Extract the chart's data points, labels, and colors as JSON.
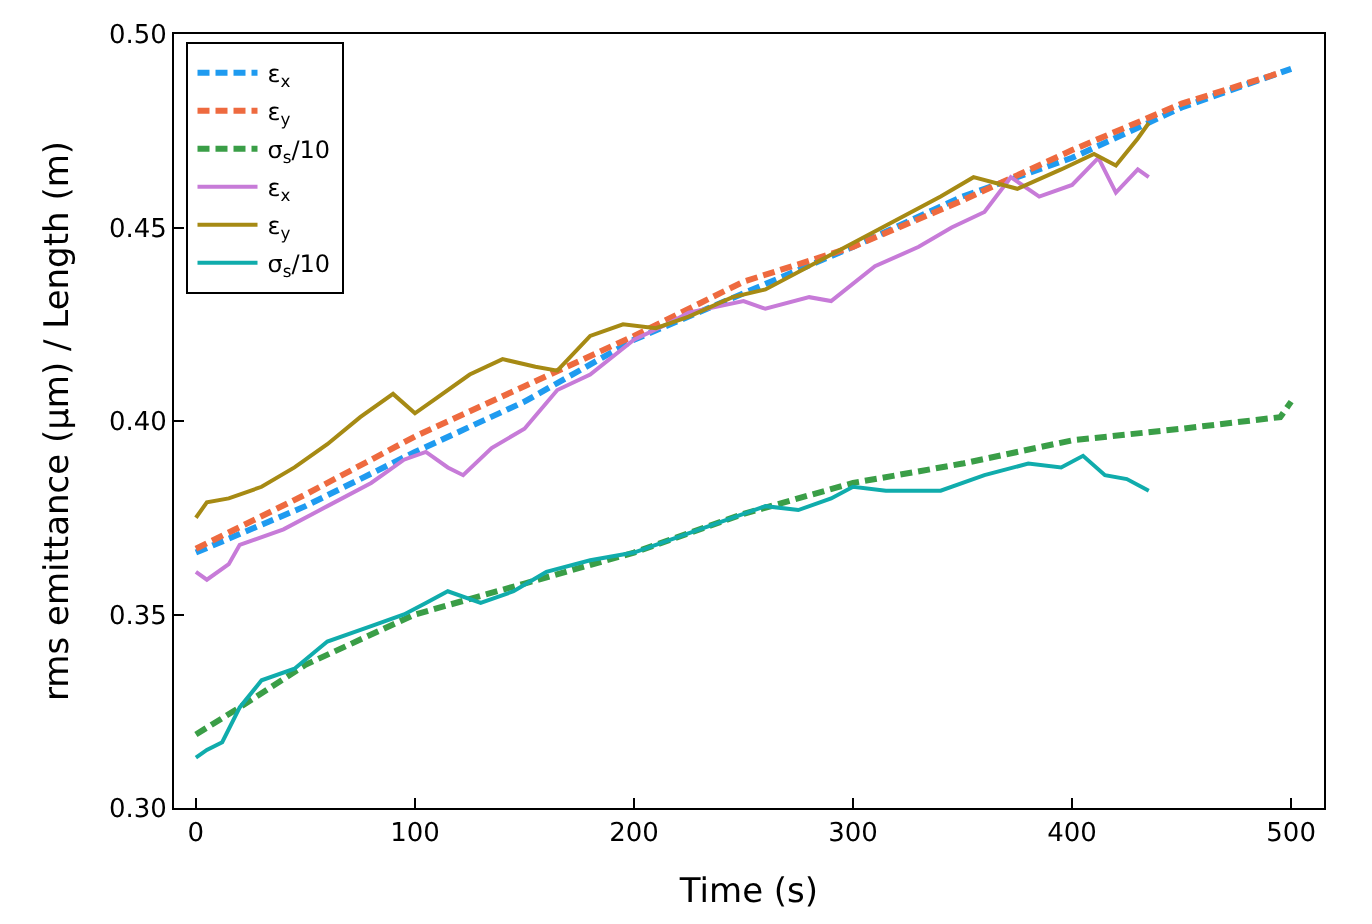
{
  "chart_data": {
    "type": "line",
    "xlabel": "Time (s)",
    "ylabel": "rms emittance (μm) / Length (m)",
    "xlim": [
      -10,
      515
    ],
    "ylim": [
      0.3,
      0.5
    ],
    "xticks": [
      0,
      100,
      200,
      300,
      400,
      500
    ],
    "yticks": [
      {
        "value": 0.3,
        "label": "0.30"
      },
      {
        "value": 0.35,
        "label": "0.35"
      },
      {
        "value": 0.4,
        "label": "0.40"
      },
      {
        "value": 0.45,
        "label": "0.45"
      },
      {
        "value": 0.5,
        "label": "0.50"
      }
    ],
    "legend": "top left",
    "marker": "none",
    "series": [
      {
        "name": "ε$_{x}$",
        "color": "#1f9bf0",
        "line_style": "dashed",
        "x": [
          0,
          50,
          100,
          150,
          200,
          250,
          300,
          350,
          400,
          450,
          500
        ],
        "values": [
          0.366,
          0.378,
          0.392,
          0.405,
          0.421,
          0.433,
          0.445,
          0.458,
          0.468,
          0.481,
          0.491
        ]
      },
      {
        "name": "ε$_{y}$",
        "color": "#ee6a3f",
        "line_style": "dashed",
        "x": [
          0,
          50,
          100,
          150,
          200,
          250,
          300,
          350,
          400,
          450,
          495
        ],
        "values": [
          0.367,
          0.381,
          0.396,
          0.409,
          0.422,
          0.436,
          0.445,
          0.457,
          0.47,
          0.482,
          0.49
        ]
      },
      {
        "name": "σ$_{s}$/10",
        "color": "#3a9e47",
        "line_style": "dashed",
        "x": [
          0,
          20,
          50,
          100,
          150,
          200,
          250,
          300,
          350,
          400,
          450,
          495,
          500
        ],
        "values": [
          0.319,
          0.326,
          0.337,
          0.35,
          0.358,
          0.366,
          0.376,
          0.384,
          0.389,
          0.395,
          0.398,
          0.401,
          0.405
        ]
      },
      {
        "name": "ε$_{x}$",
        "color": "#c77bd8",
        "line_style": "solid",
        "x": [
          0,
          5,
          15,
          20,
          40,
          60,
          80,
          95,
          105,
          115,
          122,
          135,
          150,
          165,
          180,
          200,
          215,
          225,
          250,
          260,
          280,
          290,
          310,
          330,
          345,
          360,
          372,
          385,
          400,
          412,
          420,
          430,
          435
        ],
        "values": [
          0.361,
          0.359,
          0.363,
          0.368,
          0.372,
          0.378,
          0.384,
          0.39,
          0.392,
          0.388,
          0.386,
          0.393,
          0.398,
          0.408,
          0.412,
          0.421,
          0.425,
          0.428,
          0.431,
          0.429,
          0.432,
          0.431,
          0.44,
          0.445,
          0.45,
          0.454,
          0.463,
          0.458,
          0.461,
          0.468,
          0.459,
          0.465,
          0.463
        ]
      },
      {
        "name": "ε$_{y}$",
        "color": "#a68a14",
        "line_style": "solid",
        "x": [
          0,
          5,
          15,
          30,
          45,
          60,
          75,
          90,
          100,
          110,
          125,
          140,
          155,
          165,
          180,
          195,
          210,
          225,
          245,
          260,
          280,
          300,
          320,
          340,
          355,
          375,
          395,
          410,
          420,
          430,
          435
        ],
        "values": [
          0.375,
          0.379,
          0.38,
          0.383,
          0.388,
          0.394,
          0.401,
          0.407,
          0.402,
          0.406,
          0.412,
          0.416,
          0.414,
          0.413,
          0.422,
          0.425,
          0.424,
          0.427,
          0.432,
          0.434,
          0.44,
          0.446,
          0.452,
          0.458,
          0.463,
          0.46,
          0.465,
          0.469,
          0.466,
          0.473,
          0.477
        ]
      },
      {
        "name": "σ$_{s}$/10",
        "color": "#10acac",
        "line_style": "solid",
        "x": [
          0,
          5,
          12,
          20,
          30,
          45,
          60,
          80,
          95,
          105,
          115,
          130,
          145,
          160,
          180,
          200,
          230,
          260,
          275,
          290,
          300,
          315,
          340,
          360,
          380,
          395,
          405,
          415,
          425,
          435
        ],
        "values": [
          0.313,
          0.315,
          0.317,
          0.326,
          0.333,
          0.336,
          0.343,
          0.347,
          0.35,
          0.353,
          0.356,
          0.353,
          0.356,
          0.361,
          0.364,
          0.366,
          0.372,
          0.378,
          0.377,
          0.38,
          0.383,
          0.382,
          0.382,
          0.386,
          0.389,
          0.388,
          0.391,
          0.386,
          0.385,
          0.382
        ]
      }
    ]
  }
}
